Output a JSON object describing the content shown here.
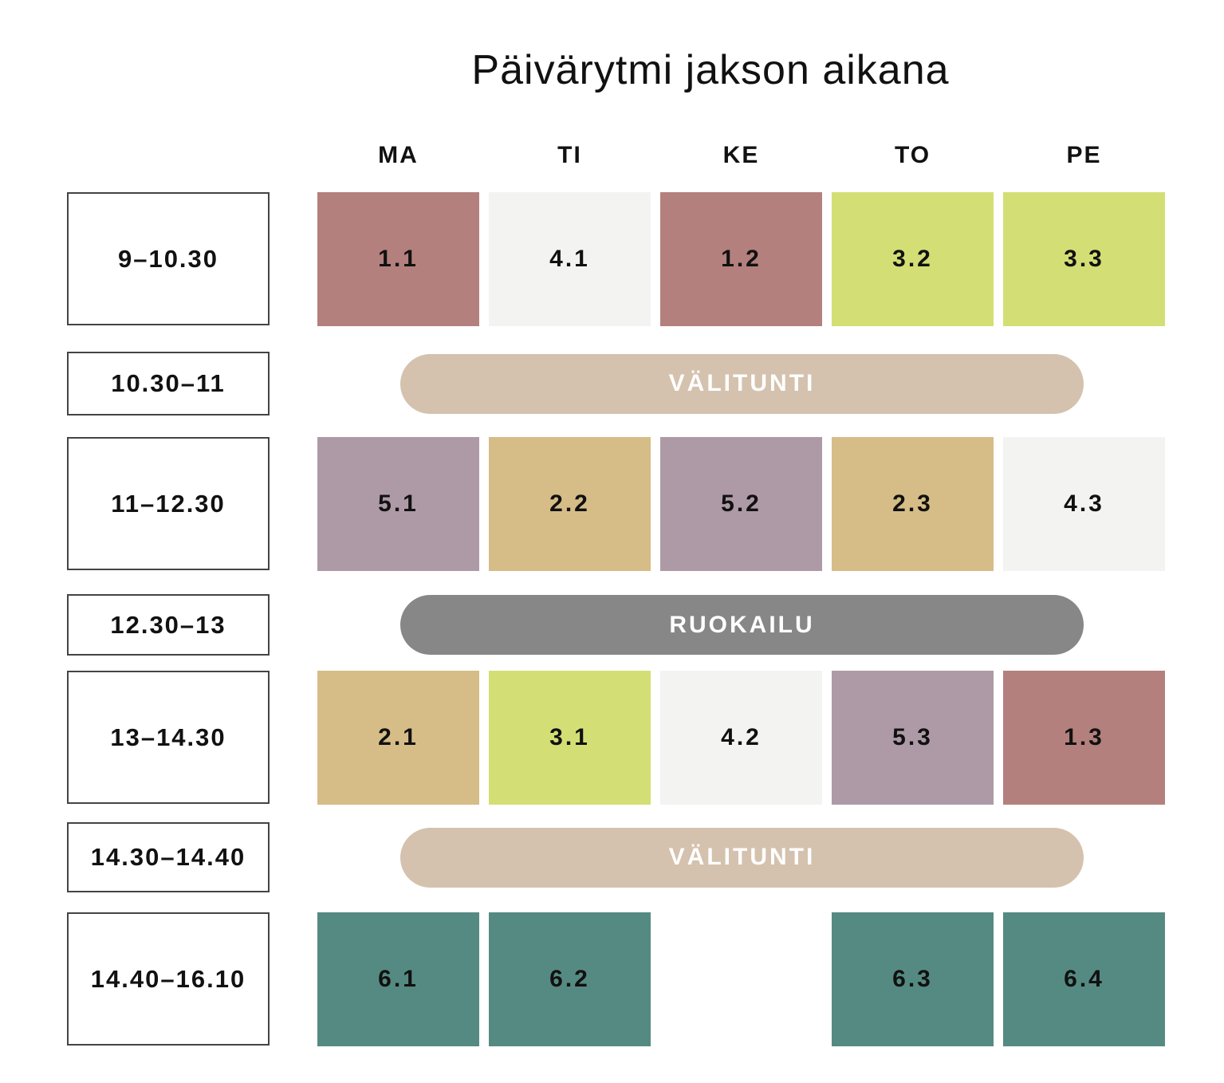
{
  "title": "Päivärytmi jakson aikana",
  "colors": {
    "rose": "#b3807d",
    "light": "#f3f3f1",
    "lime": "#d3df74",
    "mauve": "#ae9aa6",
    "sand": "#d6bd87",
    "teal": "#558a82",
    "break": "#d4c2ae",
    "lunch": "#878787"
  },
  "days": [
    "MA",
    "TI",
    "KE",
    "TO",
    "PE"
  ],
  "times": [
    "9–10.30",
    "10.30–11",
    "11–12.30",
    "12.30–13",
    "13–14.30",
    "14.30–14.40",
    "14.40–16.10"
  ],
  "rows": [
    {
      "cells": [
        {
          "label": "1.1",
          "color": "rose"
        },
        {
          "label": "4.1",
          "color": "light"
        },
        {
          "label": "1.2",
          "color": "rose"
        },
        {
          "label": "3.2",
          "color": "lime"
        },
        {
          "label": "3.3",
          "color": "lime"
        }
      ]
    },
    {
      "pill": "VÄLITUNTI",
      "color": "break"
    },
    {
      "cells": [
        {
          "label": "5.1",
          "color": "mauve"
        },
        {
          "label": "2.2",
          "color": "sand"
        },
        {
          "label": "5.2",
          "color": "mauve"
        },
        {
          "label": "2.3",
          "color": "sand"
        },
        {
          "label": "4.3",
          "color": "light"
        }
      ]
    },
    {
      "pill": "RUOKAILU",
      "color": "lunch"
    },
    {
      "cells": [
        {
          "label": "2.1",
          "color": "sand"
        },
        {
          "label": "3.1",
          "color": "lime"
        },
        {
          "label": "4.2",
          "color": "light"
        },
        {
          "label": "5.3",
          "color": "mauve"
        },
        {
          "label": "1.3",
          "color": "rose"
        }
      ]
    },
    {
      "pill": "VÄLITUNTI",
      "color": "break"
    },
    {
      "cells": [
        {
          "label": "6.1",
          "color": "teal"
        },
        {
          "label": "6.2",
          "color": "teal"
        },
        null,
        {
          "label": "6.3",
          "color": "teal"
        },
        {
          "label": "6.4",
          "color": "teal"
        }
      ]
    }
  ]
}
